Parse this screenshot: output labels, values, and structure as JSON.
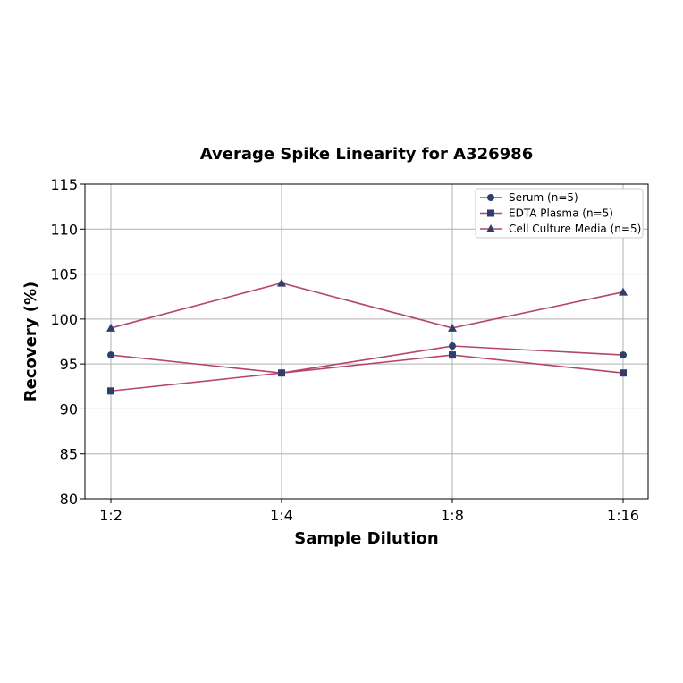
{
  "chart_data": {
    "type": "line",
    "title": "Average Spike Linearity for A326986",
    "xlabel": "Sample Dilution",
    "ylabel": "Recovery (%)",
    "categories": [
      "1:2",
      "1:4",
      "1:8",
      "1:16"
    ],
    "ylim": [
      80,
      115
    ],
    "yticks": [
      80,
      85,
      90,
      95,
      100,
      105,
      110,
      115
    ],
    "grid": true,
    "legend_position": "upper right",
    "line_color": "#b5446e",
    "marker_color": "#2e3f6e",
    "series": [
      {
        "name": "Serum (n=5)",
        "marker": "circle",
        "values": [
          96,
          94,
          97,
          96
        ]
      },
      {
        "name": "EDTA Plasma (n=5)",
        "marker": "square",
        "values": [
          92,
          94,
          96,
          94
        ]
      },
      {
        "name": "Cell Culture Media (n=5)",
        "marker": "triangle",
        "values": [
          99,
          104,
          99,
          103
        ]
      }
    ]
  }
}
